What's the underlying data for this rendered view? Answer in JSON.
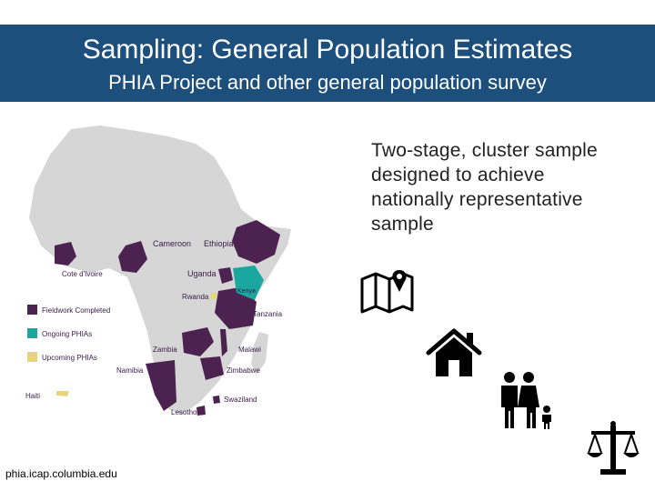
{
  "header": {
    "title": "Sampling: General Population Estimates",
    "subtitle": "PHIA Project and other general population survey"
  },
  "description": "Two-stage, cluster sample\ndesigned to achieve\nnationally representative\nsample",
  "source": "phia.icap.columbia.edu",
  "map": {
    "legend": [
      {
        "label": "Fieldwork Completed",
        "color": "#4b2250"
      },
      {
        "label": "Ongoing PHIAs",
        "color": "#1aa7a0"
      },
      {
        "label": "Upcoming PHIAs",
        "color": "#e8d57a"
      }
    ],
    "countries": [
      {
        "name": "Cameroon",
        "status": "Fieldwork Completed"
      },
      {
        "name": "Ethiopia",
        "status": "Fieldwork Completed"
      },
      {
        "name": "Cote d'Ivoire",
        "status": "Fieldwork Completed"
      },
      {
        "name": "Uganda",
        "status": "Fieldwork Completed"
      },
      {
        "name": "Kenya",
        "status": "Ongoing PHIAs"
      },
      {
        "name": "Rwanda",
        "status": "Upcoming PHIAs"
      },
      {
        "name": "Tanzania",
        "status": "Fieldwork Completed"
      },
      {
        "name": "Zambia",
        "status": "Fieldwork Completed"
      },
      {
        "name": "Malawi",
        "status": "Fieldwork Completed"
      },
      {
        "name": "Namibia",
        "status": "Fieldwork Completed"
      },
      {
        "name": "Zimbabwe",
        "status": "Fieldwork Completed"
      },
      {
        "name": "Swaziland",
        "status": "Fieldwork Completed"
      },
      {
        "name": "Lesotho",
        "status": "Fieldwork Completed"
      },
      {
        "name": "Haiti",
        "status": "Upcoming PHIAs"
      }
    ]
  },
  "icons": [
    "map-pin-icon",
    "house-icon",
    "family-icon",
    "scales-icon"
  ],
  "colors": {
    "banner": "#1d4f7d",
    "land": "#d6d6d6",
    "completed": "#4b2250",
    "ongoing": "#1aa7a0",
    "upcoming": "#e8d57a"
  }
}
